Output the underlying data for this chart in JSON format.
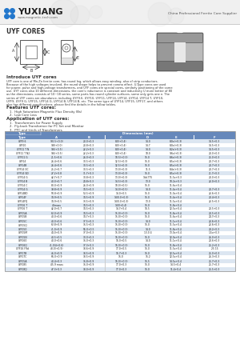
{
  "title": "UYF CORES",
  "company": "YUXIANG",
  "website": "www.magnetic-tech.com",
  "tagline": "China Professional Ferrite Core Supplier",
  "header_bg": "#f0f0f0",
  "logo_blue": "#2277cc",
  "intro_title": "Introduce UYF cores",
  "features_title": "Features UYF cores:",
  "features": [
    "1.  High Saturation Magnetic Flux Density (Bs)",
    "2.  Low Core Loss"
  ],
  "applications_title": "Application of UYF cores:",
  "applications": [
    "1.  Transformers for Power Supply",
    "2.  Fly-back Transformer for PC Set and Monitor",
    "3.  PFC and kinds of Transformers"
  ],
  "table_header_bg": "#6688bb",
  "table_alt_row": "#dce6f1",
  "table_col_headers": [
    "Type",
    "A",
    "B",
    "C",
    "D",
    "E",
    "F"
  ],
  "table_subheader": "Dimensions (mm)",
  "table_rows": [
    [
      "UYF9.6",
      "9(0.5+0.0)",
      "20.0+0.3",
      "8.0(+0.4)",
      "14.0",
      "8.0x(+0.3)",
      "14.5+0.3"
    ],
    [
      "UYF10",
      "9.8(+0.0)",
      "20.8+0.3",
      "8.0(+0.4)",
      "14.7",
      "8.0x(+0.3)",
      "14.5+0.3"
    ],
    [
      "UYF11 T N",
      "9.6(+0.5)",
      "22.2+0.3",
      "8.0(+0.4)",
      "14.0",
      "8.2x(+0.3)",
      "14.5+0.3"
    ],
    [
      "UYF11 T N2",
      "9.6(+0.5)",
      "22.2+0.3",
      "8.0(+0.4)",
      "18.0",
      "9.6x(+0.3)",
      "20.0+0.3"
    ],
    [
      "UYF11 G",
      "21.5+0.6",
      "26.0+0.3",
      "10.5(+0.3)",
      "15.0",
      "8.6x(+0.3)",
      "25.0+0.3"
    ],
    [
      "UYF14",
      "26.4+0.6",
      "30.5+0.3",
      "12.5(+0.3)",
      "15.0",
      "8.5x(+0.3)",
      "20.7+0.3"
    ],
    [
      "UYF14B",
      "26.4+0.6",
      "30.5+0.3",
      "12.5(+0.3)",
      "15.0",
      "8.5x(+0.3)",
      "20.7+0.3"
    ],
    [
      "UYF14 GC",
      "25.2+0.7",
      "30.5+0.3",
      "13.0(+0.3)",
      "11.5",
      "8.4x(+0.3)",
      "20.7+0.3"
    ],
    [
      "UYF14 GD",
      "27.2+0.8",
      "31.7+0.3",
      "13.0(+0.3)",
      "15.0",
      "8.5x(+0.3)",
      "21.7+0.3"
    ],
    [
      "UYF14 G",
      "42.7+0.7",
      "30.8+0.3",
      "13.0(+0.3)",
      "14d.775",
      "11.5x+0.3",
      "20.0+0.3"
    ],
    [
      "UYF14 B",
      "40.0+0.7",
      "24.8+0.3",
      "14.5(+0.3)",
      "13.0",
      "10.2x+0.3",
      "22.0+0.3"
    ],
    [
      "UYF14 C",
      "80.0+0.9",
      "26.0+0.9",
      "18.0(+0.5)",
      "15.0",
      "11.6x+0.4",
      ""
    ],
    [
      "UYF14 G",
      "39.8+0.9",
      "34.5+0.3",
      "14.0(+0.5)",
      "14.0",
      "11.4x+0.4",
      "20.7+0.3"
    ],
    [
      "UYF14BD",
      "50.8+0.9",
      "53.5+0.9",
      "14.0+0.5",
      "15.0",
      "11.0x+0.4",
      "22.6+0.3"
    ],
    [
      "UYF14F",
      "34.9+0.5",
      "34.5+0.9",
      "14(0.0+0.3)",
      "15.0",
      "11.4x+0.4",
      "20.4+0.3"
    ],
    [
      "UYF14FQ",
      "34.9+0.5",
      "33.5+0.9",
      "14(0.0+0.3)",
      "13.0",
      "11.5x+0.4",
      "22.5+0.3"
    ],
    [
      "UYF16 T",
      "40mass",
      "34.5+0.3",
      "14(0+0.4)",
      "15.0",
      "11.8x+0.4",
      ""
    ],
    [
      "UYF16 T",
      "42.0+0.7",
      "34.5+0.3",
      "14.7+0.4",
      "16.5",
      "12.5x+0.4",
      "20.5+0.3"
    ],
    [
      "UYF15A",
      "62.0+0.9",
      "34.5+0.3",
      "15.0(+0.3)",
      "15.0",
      "11.8x+0.4",
      "20.5+0.3"
    ],
    [
      "UYF15B",
      "40.0+0.6",
      "34.7+0.3",
      "15.0(+0.3)",
      "15.0",
      "11.6x+0.4",
      "24.7+0.3"
    ],
    [
      "UYF15C",
      "40.0+0.6",
      "37.5+0.3",
      "15.0(+0.3)",
      "14.0",
      "11.1x+0.4",
      "22.6+0.3"
    ],
    [
      "UYF15Q",
      "62.8+0.9",
      "36.5+0.3",
      "15.0(+0.3)",
      "15.0",
      "11.5x+0.4",
      "22.6+0.3"
    ],
    [
      "UYF150",
      "41.0+0.9",
      "55.0+0.5",
      "15.0(+0.3)",
      "14.0",
      "11.8x+0.4",
      "28.2+0.3"
    ],
    [
      "UYF15M",
      "44.0+0.9",
      "37.0+0.3",
      "15.0(+0.3)",
      "13.0 4",
      "13.0x+0.4",
      "1.5x+0.3"
    ],
    [
      "UYF15N",
      "40.5+0.5",
      "30.0+0.3",
      "16.0(+0.3)",
      "15.0",
      "12.0x+0.4",
      "26.0+0.3"
    ],
    [
      "UYF160",
      "40.0+0.6",
      "36.0+0.3",
      "16.0+0.5",
      "14.0",
      "11.1x+0.4",
      "20.6+0.3"
    ],
    [
      "UYF16Q",
      "41.0(4+0.6)",
      "37.3+0.3",
      "16.0(+0.3)",
      "15.0",
      "11.8x+0.4",
      "25.2+0.3"
    ],
    [
      "UYF16 F9d",
      "48.0(+0.9)",
      "38.6+0.9",
      "17.0+0.5",
      "15.0",
      "11.5x+0.4",
      "25 15"
    ],
    [
      "UYF17B",
      "46.0+0.9",
      "38.5+0.9",
      "16.7+0.3",
      "15.0",
      "12.5x+0.4",
      "25.0+0.3"
    ],
    [
      "UYF17C",
      "66.0+0.9",
      "38.5+0.9",
      "15.0",
      "15.2",
      "12.5x+0.4",
      "26.3+0.3"
    ],
    [
      "UYF15A",
      "40.4+0.3",
      "36.8+0.9",
      "16.0(+0.3)",
      "15.5",
      "14.5x+0.4",
      "25.7+0.3"
    ],
    [
      "UYF185",
      "45.9 mass",
      "36.0+0.9",
      "17.0+0.3",
      "15.0",
      "14.5+0.4",
      "25.7+0.3"
    ],
    [
      "UYF18Q",
      "47.3+0.3",
      "38.0+0.9",
      "17.0+0.3",
      "15.0",
      "11.4+0.4",
      "25.5+0.3"
    ]
  ],
  "bg_color": "#ffffff",
  "watermark_color": "#c8d8ea",
  "header_line_color": "#cccccc",
  "table_border_color": "#999999",
  "text_color": "#333333",
  "intro_text_lines": [
    "UYF core is one of Mn-Zn ferrite core, has round leg, which allows easy winding, also of strip conductors.",
    "Because of the high voltages involved, the round shape helps to prevent corona effect. U-Type cores are used",
    "for power, pulse and high-voltage transformers, and UYF cores are special cores, similarly positioning of the same",
    "use. UYF cores also 10 different dimensions, the core's inductance is constant and inductivity U more better of 80",
    "as the dimensions, consists of 10~18 series, some parts has round cylinder surfaces, some only gets one e. The",
    "series of UYF cores are abundance, including UYF9.6, UYF10, UYF11, UYF14, UYF14, UYF14, UYF14 T, UYF10,",
    "UYF9, UYF9 G, UYF15, UYF14 G, UYF14 B, UYF14 B, etc. The same type of UYF14, UYF15, UYF17, and others",
    "also has different specifications, please find the details in the follow tables."
  ]
}
